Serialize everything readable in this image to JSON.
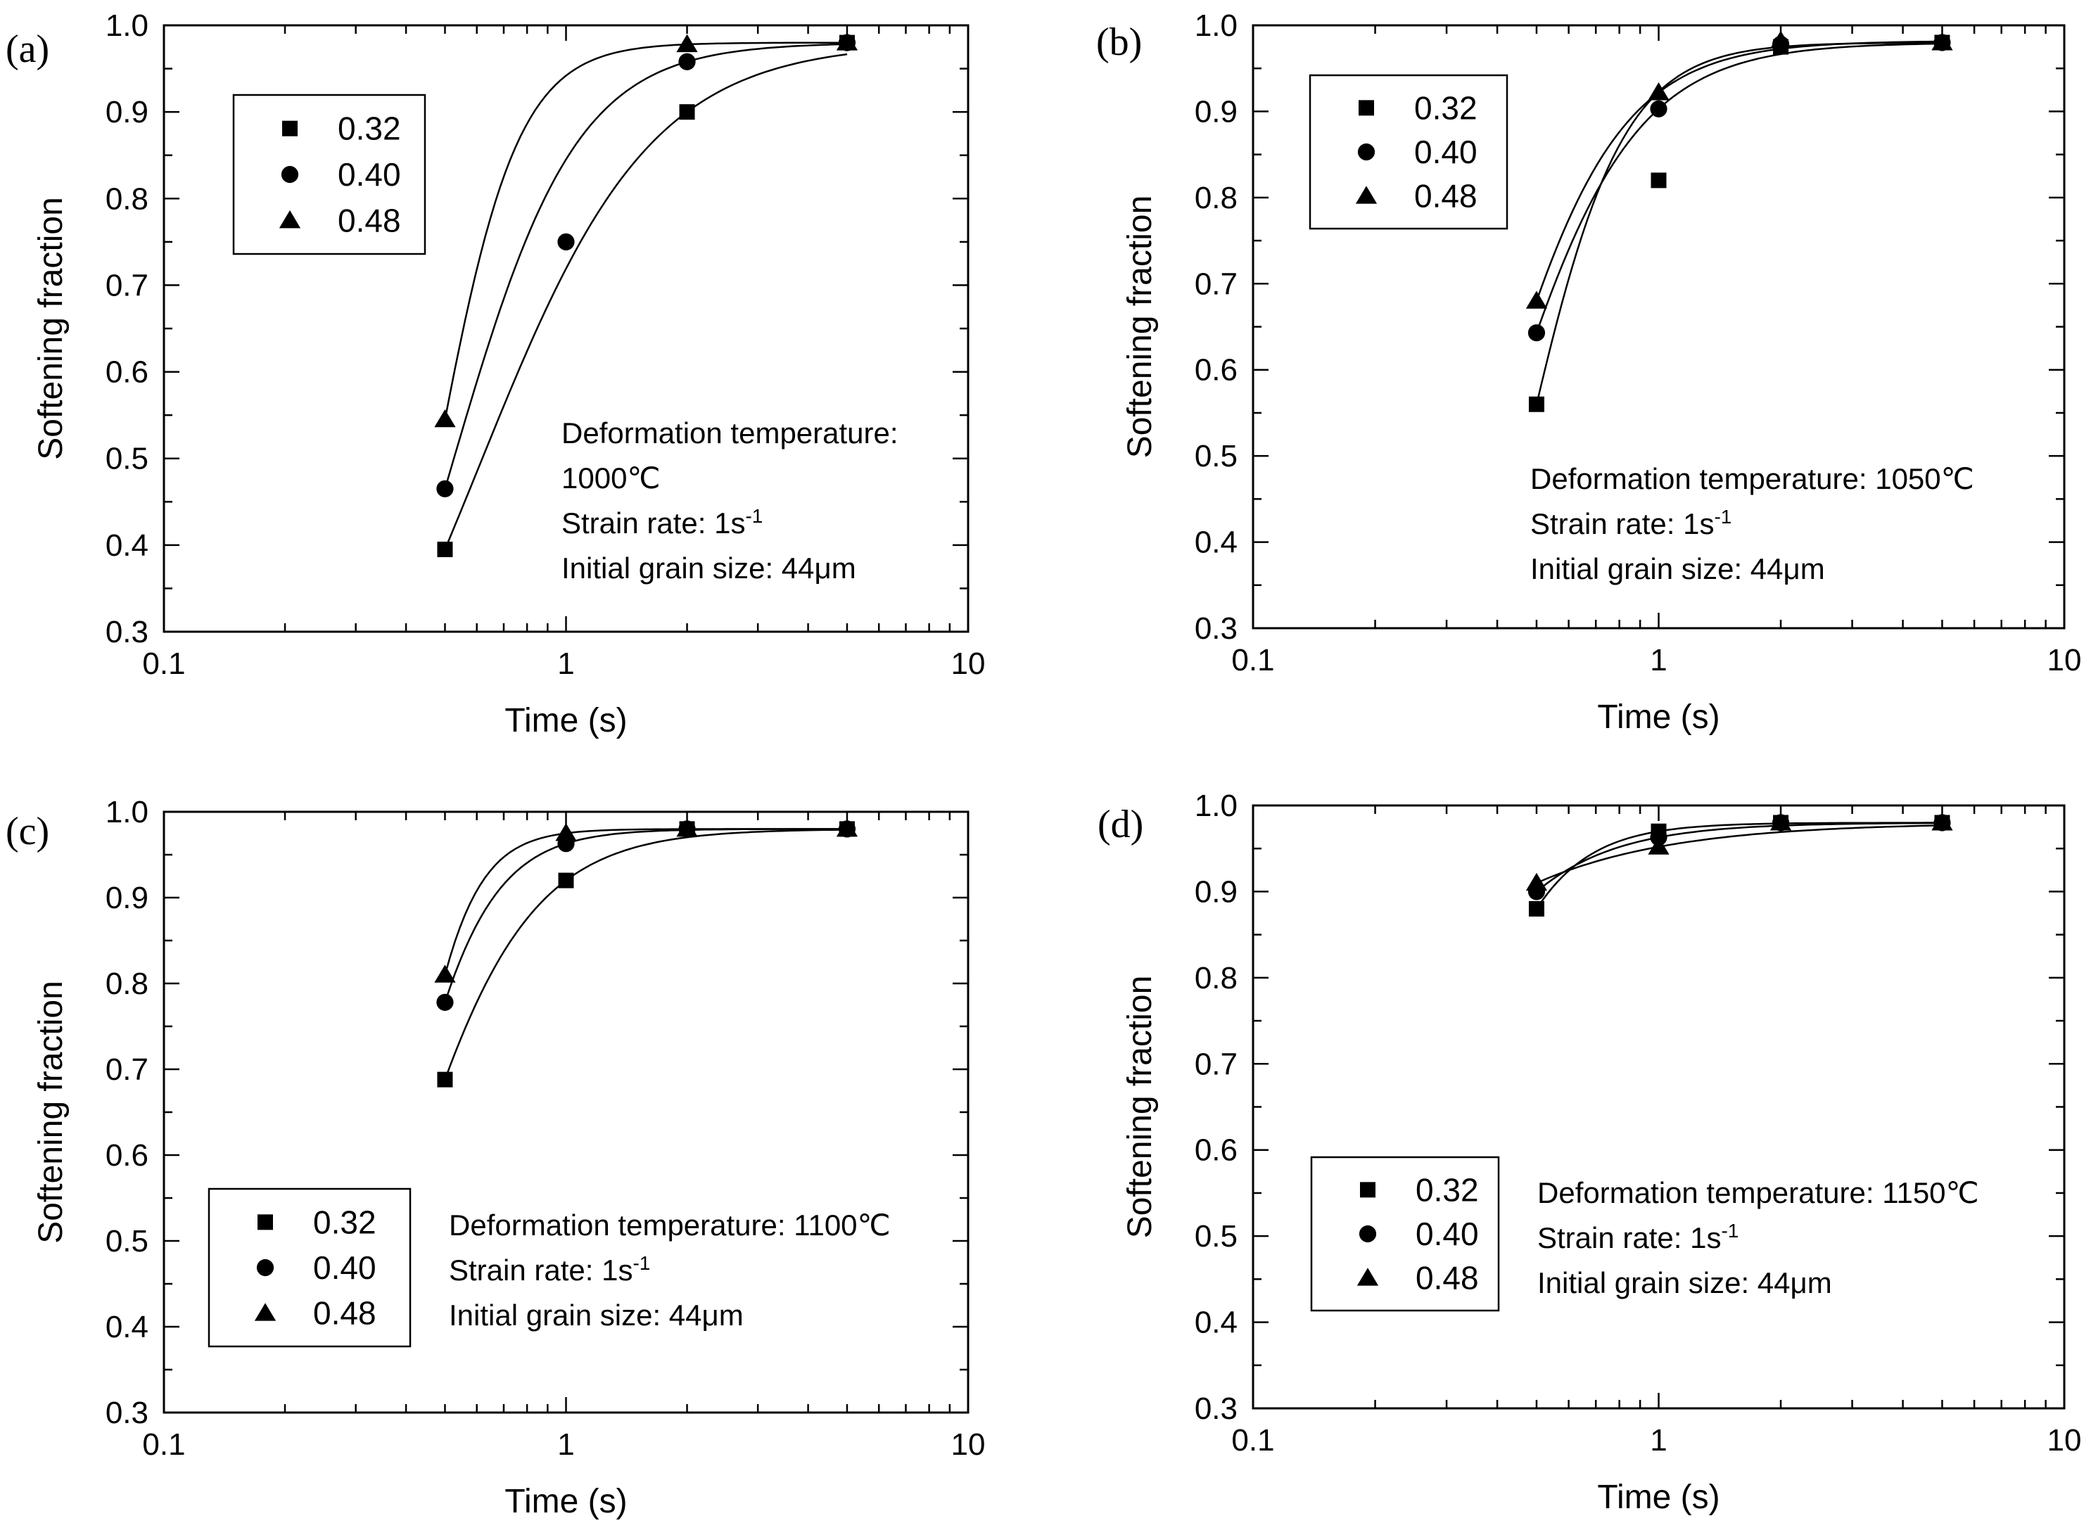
{
  "chart_data": [
    {
      "panel_label": "(a)",
      "type": "scatter",
      "xscale": "log",
      "xlim": [
        0.1,
        10
      ],
      "ylim": [
        0.3,
        1.0
      ],
      "xticks": [
        "0.1",
        "1",
        "10"
      ],
      "yticks": [
        "0.3",
        "0.4",
        "0.5",
        "0.6",
        "0.7",
        "0.8",
        "0.9",
        "1.0"
      ],
      "xlabel": "Time (s)",
      "ylabel": "Softening fraction",
      "legend": "upper-left",
      "series": [
        {
          "name": "0.32",
          "marker": "square",
          "x": [
            0.5,
            2,
            5
          ],
          "y": [
            0.395,
            0.9,
            0.98
          ]
        },
        {
          "name": "0.40",
          "marker": "circle",
          "x": [
            0.5,
            1,
            2,
            5
          ],
          "y": [
            0.465,
            0.75,
            0.958,
            0.98
          ]
        },
        {
          "name": "0.48",
          "marker": "triangle",
          "x": [
            0.5,
            2,
            5
          ],
          "y": [
            0.545,
            0.978,
            0.98
          ]
        }
      ],
      "annotation_lines": [
        "Deformation temperature:",
        "1000℃",
        "Strain rate: 1s",
        "Initial grain size: 44μm"
      ],
      "annotation_superscript": "-1"
    },
    {
      "panel_label": "(b)",
      "type": "scatter",
      "xscale": "log",
      "xlim": [
        0.1,
        10
      ],
      "ylim": [
        0.3,
        1.0
      ],
      "xticks": [
        "0.1",
        "1",
        "10"
      ],
      "yticks": [
        "0.3",
        "0.4",
        "0.5",
        "0.6",
        "0.7",
        "0.8",
        "0.9",
        "1.0"
      ],
      "xlabel": "Time (s)",
      "ylabel": "Softening fraction",
      "legend": "upper-left",
      "series": [
        {
          "name": "0.32",
          "marker": "square",
          "x": [
            0.5,
            1,
            2,
            5
          ],
          "y": [
            0.56,
            0.82,
            0.975,
            0.98
          ]
        },
        {
          "name": "0.40",
          "marker": "circle",
          "x": [
            0.5,
            1,
            2,
            5
          ],
          "y": [
            0.643,
            0.903,
            0.978,
            0.98
          ]
        },
        {
          "name": "0.48",
          "marker": "triangle",
          "x": [
            0.5,
            1,
            2,
            5
          ],
          "y": [
            0.68,
            0.922,
            0.982,
            0.98
          ]
        }
      ],
      "annotation_lines": [
        "Deformation temperature: 1050℃",
        "Strain rate: 1s",
        "Initial grain size: 44μm"
      ],
      "annotation_superscript": "-1"
    },
    {
      "panel_label": "(c)",
      "type": "scatter",
      "xscale": "log",
      "xlim": [
        0.1,
        10
      ],
      "ylim": [
        0.3,
        1.0
      ],
      "xticks": [
        "0.1",
        "1",
        "10"
      ],
      "yticks": [
        "0.3",
        "0.4",
        "0.5",
        "0.6",
        "0.7",
        "0.8",
        "0.9",
        "1.0"
      ],
      "xlabel": "Time (s)",
      "ylabel": "Softening fraction",
      "legend": "lower-left",
      "series": [
        {
          "name": "0.32",
          "marker": "square",
          "x": [
            0.5,
            1,
            2,
            5
          ],
          "y": [
            0.688,
            0.92,
            0.98,
            0.98
          ]
        },
        {
          "name": "0.40",
          "marker": "circle",
          "x": [
            0.5,
            1,
            2,
            5
          ],
          "y": [
            0.778,
            0.963,
            0.98,
            0.98
          ]
        },
        {
          "name": "0.48",
          "marker": "triangle",
          "x": [
            0.5,
            1,
            2,
            5
          ],
          "y": [
            0.81,
            0.975,
            0.98,
            0.98
          ]
        }
      ],
      "annotation_lines": [
        "Deformation temperature: 1100℃",
        "Strain rate: 1s",
        "Initial grain size: 44μm"
      ],
      "annotation_superscript": "-1"
    },
    {
      "panel_label": "(d)",
      "type": "scatter",
      "xscale": "log",
      "xlim": [
        0.1,
        10
      ],
      "ylim": [
        0.3,
        1.0
      ],
      "xticks": [
        "0.1",
        "1",
        "10"
      ],
      "yticks": [
        "0.3",
        "0.4",
        "0.5",
        "0.6",
        "0.7",
        "0.8",
        "0.9",
        "1.0"
      ],
      "xlabel": "Time (s)",
      "ylabel": "Softening fraction",
      "legend": "lower-left",
      "series": [
        {
          "name": "0.32",
          "marker": "square",
          "x": [
            0.5,
            1,
            2,
            5
          ],
          "y": [
            0.88,
            0.97,
            0.98,
            0.98
          ]
        },
        {
          "name": "0.40",
          "marker": "circle",
          "x": [
            0.5,
            1,
            2,
            5
          ],
          "y": [
            0.9,
            0.963,
            0.98,
            0.98
          ]
        },
        {
          "name": "0.48",
          "marker": "triangle",
          "x": [
            0.5,
            1,
            2,
            5
          ],
          "y": [
            0.91,
            0.952,
            0.98,
            0.98
          ]
        }
      ],
      "annotation_lines": [
        "Deformation temperature: 1150℃",
        "Strain rate: 1s",
        "Initial grain size: 44μm"
      ],
      "annotation_superscript": "-1"
    }
  ]
}
